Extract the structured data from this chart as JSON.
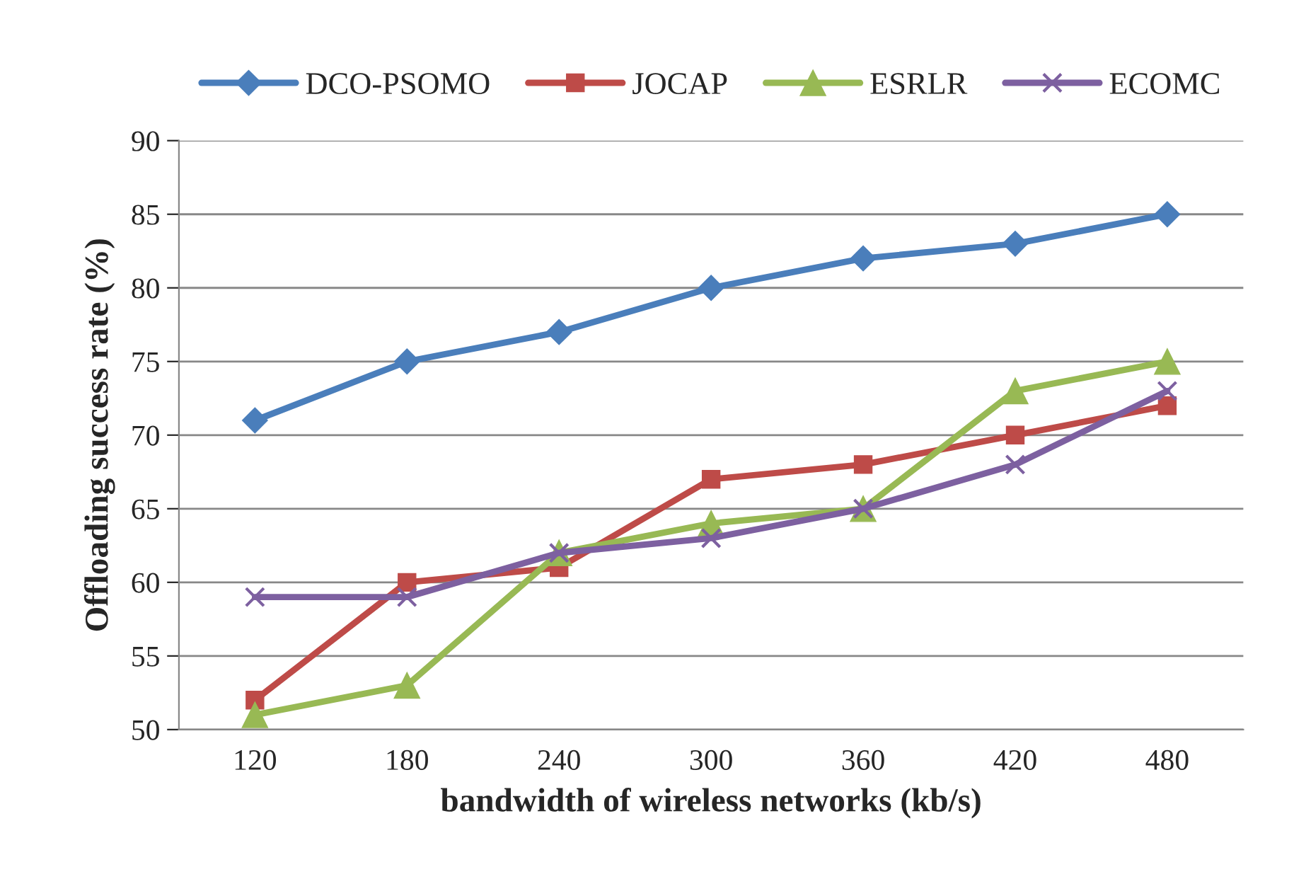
{
  "chart_data": {
    "type": "line",
    "xlabel": "bandwidth of wireless networks (kb/s)",
    "ylabel": "Offloading success rate (%)",
    "categories": [
      "120",
      "180",
      "240",
      "300",
      "360",
      "420",
      "480"
    ],
    "series": [
      {
        "name": "DCO-PSOMO",
        "color": "#4a7ebb",
        "marker": "diamond",
        "values": [
          71,
          75,
          77,
          80,
          82,
          83,
          85
        ]
      },
      {
        "name": "JOCAP",
        "color": "#be4b48",
        "marker": "square",
        "values": [
          52,
          60,
          61,
          67,
          68,
          70,
          72
        ]
      },
      {
        "name": "ESRLR",
        "color": "#98b954",
        "marker": "triangle",
        "values": [
          51,
          53,
          62,
          64,
          65,
          73,
          75
        ]
      },
      {
        "name": "ECOMC",
        "color": "#7d60a0",
        "marker": "cross",
        "values": [
          59,
          59,
          62,
          63,
          65,
          68,
          73
        ]
      }
    ],
    "ylim": [
      50,
      90
    ],
    "yticks": [
      50,
      55,
      60,
      65,
      70,
      75,
      80,
      85,
      90
    ],
    "grid": "y",
    "legend": "top",
    "line_style": "solid"
  }
}
